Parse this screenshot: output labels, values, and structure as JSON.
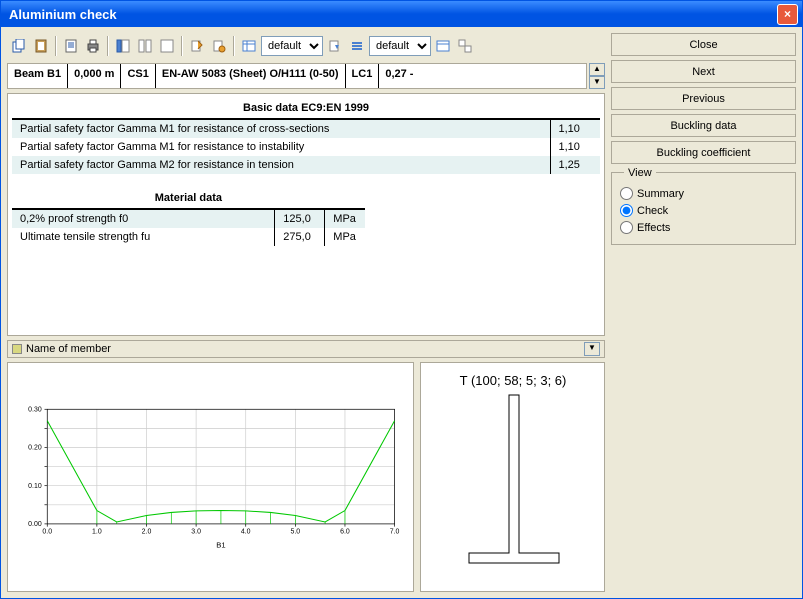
{
  "window": {
    "title": "Aluminium check"
  },
  "toolbar": {
    "select1_value": "default",
    "select2_value": "default"
  },
  "info": {
    "beam": "Beam B1",
    "position": "0,000 m",
    "cs": "CS1",
    "material": "EN-AW 5083 (Sheet) O/H111 (0-50)",
    "lc": "LC1",
    "ratio": "0,27 -"
  },
  "basic_table": {
    "title": "Basic data EC9:EN  1999",
    "rows": [
      {
        "label": "Partial safety factor Gamma M1 for resistance of cross-sections",
        "value": "1,10"
      },
      {
        "label": "Partial safety factor Gamma M1 for resistance to instability",
        "value": "1,10"
      },
      {
        "label": "Partial safety factor Gamma M2 for resistance in tension",
        "value": "1,25"
      }
    ]
  },
  "material_table": {
    "title": "Material data",
    "rows": [
      {
        "label": "0,2% proof strength f0",
        "value": "125,0",
        "unit": "MPa"
      },
      {
        "label": "Ultimate tensile strength fu",
        "value": "275,0",
        "unit": "MPa"
      }
    ]
  },
  "legend": {
    "label": "Name of member"
  },
  "buttons": {
    "close": "Close",
    "next": "Next",
    "previous": "Previous",
    "buckling_data": "Buckling data",
    "buckling_coeff": "Buckling coefficient"
  },
  "view": {
    "title": "View",
    "options": {
      "summary": "Summary",
      "check": "Check",
      "effects": "Effects"
    },
    "selected": "check"
  },
  "chart": {
    "type": "line",
    "member_label": "B1",
    "x_range": [
      0,
      7
    ],
    "x_tick_step": 1.0,
    "y_range": [
      0,
      0.3
    ],
    "y_tick_step": 0.05,
    "y_tick_labels": [
      "0.00",
      "",
      "0.10",
      "",
      "0.20",
      "",
      "0.30"
    ],
    "x_tick_labels": [
      "0.0",
      "1.0",
      "2.0",
      "3.0",
      "4.0",
      "5.0",
      "6.0",
      "7.0"
    ],
    "line_color": "#00c800",
    "grid_color": "#cccccc",
    "background": "#ffffff",
    "points": [
      [
        0.0,
        0.27
      ],
      [
        1.0,
        0.035
      ],
      [
        1.4,
        0.005
      ],
      [
        2.0,
        0.022
      ],
      [
        2.5,
        0.03
      ],
      [
        3.0,
        0.034
      ],
      [
        3.5,
        0.035
      ],
      [
        4.0,
        0.034
      ],
      [
        4.5,
        0.03
      ],
      [
        5.0,
        0.022
      ],
      [
        5.6,
        0.005
      ],
      [
        6.0,
        0.035
      ],
      [
        7.0,
        0.27
      ]
    ],
    "drops_x": [
      1.0,
      1.4,
      2.0,
      2.5,
      3.0,
      3.5,
      4.0,
      4.5,
      5.0,
      5.6,
      6.0
    ]
  },
  "section": {
    "title": "T (100; 58; 5; 3; 6)",
    "stroke_color": "#000000"
  }
}
